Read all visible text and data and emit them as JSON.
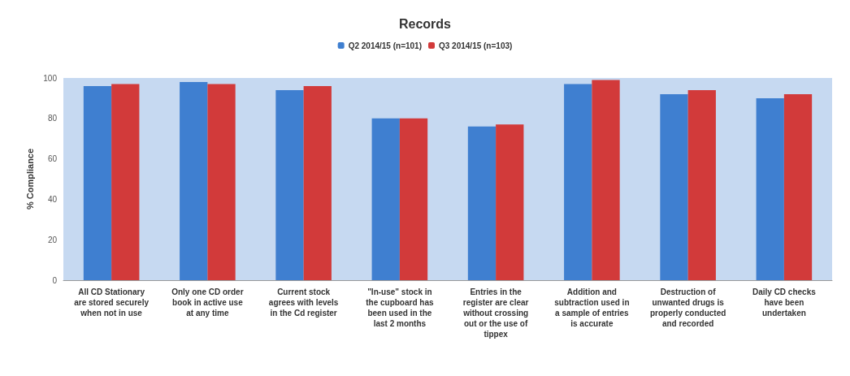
{
  "chart_data": {
    "type": "bar",
    "title": "Records",
    "ylabel": "% Compliance",
    "categories": [
      "All CD Stationary\nare stored securely\nwhen not in use",
      "Only one CD order\nbook in active use\nat any time",
      "Current stock\nagrees with levels\nin the Cd register",
      "\"In-use\" stock in\nthe cupboard has\nbeen used in the\nlast 2 months",
      "Entries in the\nregister are clear\nwithout crossing\nout or the use of\ntippex",
      "Addition and\nsubtraction used in\na sample of entries\nis accurate",
      "Destruction of\nunwanted drugs is\nproperly conducted\nand recorded",
      "Daily CD checks\nhave been\nundertaken"
    ],
    "series": [
      {
        "name": "Q2 2014/15 (n=101)",
        "color": "#3f7fd0",
        "values": [
          96,
          98,
          94,
          80,
          76,
          97,
          92,
          90
        ]
      },
      {
        "name": "Q3 2014/15 (n=103)",
        "color": "#d23a3a",
        "values": [
          97,
          97,
          96,
          80,
          77,
          99,
          94,
          92
        ]
      }
    ],
    "ylim": [
      0,
      100
    ],
    "yticks": [
      0,
      20,
      40,
      60,
      80,
      100
    ],
    "grid": false,
    "legend": "top"
  }
}
